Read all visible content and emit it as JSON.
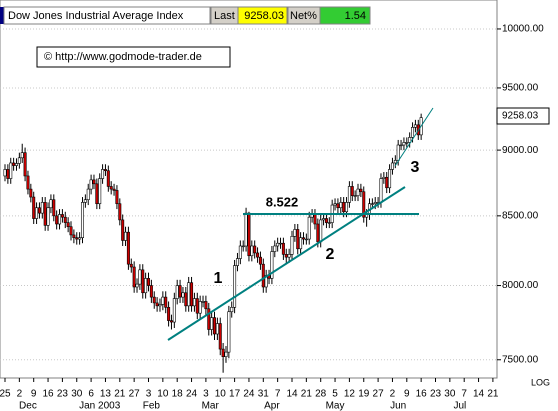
{
  "chart_data": {
    "type": "candlestick",
    "title": "Dow Jones Industrial Average Index",
    "last_label": "Last",
    "last": 9258.03,
    "net_label": "Net%",
    "net": 1.54,
    "source": "© http://www.godmode-trader.de",
    "annotations": [
      "8.522",
      "1",
      "2",
      "3"
    ],
    "log_label": "LOG",
    "log_scale": true,
    "grid": true,
    "up_color": "#ffffff",
    "down_color": "#cc0000",
    "trend_color": "#008080",
    "ylim": [
      7382,
      10255
    ],
    "yticks": [
      {
        "value": 7500,
        "label": "7500.00"
      },
      {
        "value": 8000,
        "label": "8000.00"
      },
      {
        "value": 8500,
        "label": "8500.00"
      },
      {
        "value": 9000,
        "label": "9000.00"
      },
      {
        "value": 9500,
        "label": "9500.00"
      },
      {
        "value": 10000,
        "label": "10000.00"
      }
    ],
    "date_labels": [
      "25",
      "2",
      "9",
      "16",
      "23",
      "30",
      "6",
      "13",
      "21",
      "27",
      "3",
      "10",
      "18",
      "24",
      "3",
      "10",
      "17",
      "24",
      "31",
      "7",
      "14",
      "21",
      "28",
      "5",
      "12",
      "19",
      "27",
      "2",
      "9",
      "16",
      "23",
      "30",
      "7",
      "14",
      "21"
    ],
    "month_labels": [
      "Dec",
      "Jan 2003",
      "Feb",
      "Mar",
      "Apr",
      "May",
      "Jun",
      "Jul"
    ],
    "candles": [
      [
        8800,
        8890,
        8760,
        8850
      ],
      [
        8850,
        8890,
        8740,
        8780
      ],
      [
        8780,
        8940,
        8740,
        8900
      ],
      [
        8900,
        8940,
        8840,
        8880
      ],
      [
        8880,
        8936,
        8840,
        8896
      ],
      [
        8896,
        8980,
        8856,
        8940
      ],
      [
        8940,
        9050,
        8900,
        8980
      ],
      [
        8980,
        9020,
        8760,
        8800
      ],
      [
        8800,
        8840,
        8660,
        8700
      ],
      [
        8700,
        8740,
        8600,
        8640
      ],
      [
        8640,
        8680,
        8440,
        8480
      ],
      [
        8480,
        8600,
        8440,
        8560
      ],
      [
        8560,
        8600,
        8480,
        8520
      ],
      [
        8520,
        8640,
        8480,
        8600
      ],
      [
        8600,
        8640,
        8390,
        8430
      ],
      [
        8430,
        8600,
        8390,
        8560
      ],
      [
        8560,
        8660,
        8520,
        8620
      ],
      [
        8620,
        8660,
        8460,
        8500
      ],
      [
        8500,
        8540,
        8400,
        8440
      ],
      [
        8440,
        8550,
        8400,
        8510
      ],
      [
        8510,
        8550,
        8450,
        8490
      ],
      [
        8490,
        8530,
        8410,
        8450
      ],
      [
        8450,
        8490,
        8380,
        8420
      ],
      [
        8420,
        8460,
        8320,
        8360
      ],
      [
        8360,
        8400,
        8300,
        8340
      ],
      [
        8340,
        8380,
        8290,
        8330
      ],
      [
        8330,
        8380,
        8290,
        8340
      ],
      [
        8340,
        8640,
        8300,
        8600
      ],
      [
        8600,
        8660,
        8560,
        8620
      ],
      [
        8620,
        8740,
        8580,
        8700
      ],
      [
        8700,
        8810,
        8660,
        8770
      ],
      [
        8770,
        8810,
        8700,
        8740
      ],
      [
        8740,
        8780,
        8550,
        8590
      ],
      [
        8590,
        8820,
        8550,
        8780
      ],
      [
        8780,
        8890,
        8740,
        8850
      ],
      [
        8850,
        8890,
        8800,
        8840
      ],
      [
        8840,
        8880,
        8680,
        8720
      ],
      [
        8720,
        8760,
        8660,
        8700
      ],
      [
        8700,
        8740,
        8650,
        8690
      ],
      [
        8690,
        8730,
        8550,
        8590
      ],
      [
        8590,
        8630,
        8430,
        8470
      ],
      [
        8470,
        8510,
        8280,
        8320
      ],
      [
        8320,
        8420,
        8280,
        8380
      ],
      [
        8380,
        8420,
        8110,
        8150
      ],
      [
        8150,
        8190,
        8090,
        8130
      ],
      [
        8130,
        8170,
        7950,
        7990
      ],
      [
        7990,
        8050,
        7950,
        8010
      ],
      [
        8010,
        8150,
        7970,
        8110
      ],
      [
        8110,
        8150,
        7910,
        7950
      ],
      [
        7950,
        8090,
        7910,
        8050
      ],
      [
        8050,
        8090,
        7960,
        8000
      ],
      [
        8000,
        8040,
        7880,
        7920
      ],
      [
        7920,
        7960,
        7840,
        7880
      ],
      [
        7880,
        7920,
        7820,
        7860
      ],
      [
        7860,
        7910,
        7820,
        7870
      ],
      [
        7870,
        7960,
        7830,
        7920
      ],
      [
        7920,
        7960,
        7810,
        7850
      ],
      [
        7850,
        7890,
        7720,
        7760
      ],
      [
        7760,
        7800,
        7700,
        7750
      ],
      [
        7750,
        7950,
        7710,
        7910
      ],
      [
        7910,
        8040,
        7870,
        8000
      ],
      [
        8000,
        8040,
        7880,
        7920
      ],
      [
        7920,
        7990,
        7880,
        7950
      ],
      [
        7950,
        7990,
        7820,
        7860
      ],
      [
        7860,
        8060,
        7820,
        8020
      ],
      [
        8020,
        8060,
        7820,
        7860
      ],
      [
        7860,
        7950,
        7820,
        7910
      ],
      [
        7910,
        7950,
        7770,
        7810
      ],
      [
        7810,
        7930,
        7770,
        7890
      ],
      [
        7890,
        7930,
        7850,
        7890
      ],
      [
        7890,
        7930,
        7800,
        7840
      ],
      [
        7840,
        7880,
        7660,
        7700
      ],
      [
        7700,
        7820,
        7660,
        7780
      ],
      [
        7780,
        7820,
        7630,
        7670
      ],
      [
        7670,
        7780,
        7630,
        7740
      ],
      [
        7740,
        7780,
        7530,
        7570
      ],
      [
        7570,
        7610,
        7416,
        7520
      ],
      [
        7520,
        7590,
        7480,
        7550
      ],
      [
        7550,
        7860,
        7510,
        7820
      ],
      [
        7820,
        7890,
        7780,
        7850
      ],
      [
        7850,
        8180,
        7810,
        8140
      ],
      [
        8140,
        8230,
        8100,
        8190
      ],
      [
        8190,
        8320,
        8150,
        8280
      ],
      [
        8280,
        8320,
        8240,
        8280
      ],
      [
        8280,
        8560,
        8240,
        8520
      ],
      [
        8520,
        8530,
        8170,
        8210
      ],
      [
        8210,
        8320,
        8170,
        8280
      ],
      [
        8280,
        8320,
        8190,
        8230
      ],
      [
        8230,
        8270,
        8160,
        8200
      ],
      [
        8200,
        8240,
        8110,
        8150
      ],
      [
        8150,
        8190,
        7950,
        7990
      ],
      [
        7990,
        8110,
        7950,
        8070
      ],
      [
        8070,
        8110,
        8010,
        8050
      ],
      [
        8050,
        8280,
        8010,
        8240
      ],
      [
        8240,
        8320,
        8200,
        8280
      ],
      [
        8280,
        8340,
        8240,
        8300
      ],
      [
        8300,
        8340,
        8260,
        8300
      ],
      [
        8300,
        8340,
        8180,
        8220
      ],
      [
        8220,
        8260,
        8160,
        8200
      ],
      [
        8200,
        8260,
        8160,
        8220
      ],
      [
        8220,
        8390,
        8180,
        8350
      ],
      [
        8350,
        8440,
        8310,
        8400
      ],
      [
        8400,
        8440,
        8220,
        8260
      ],
      [
        8260,
        8380,
        8220,
        8340
      ],
      [
        8340,
        8380,
        8290,
        8330
      ],
      [
        8330,
        8370,
        8290,
        8330
      ],
      [
        8330,
        8530,
        8290,
        8490
      ],
      [
        8490,
        8550,
        8450,
        8510
      ],
      [
        8510,
        8550,
        8400,
        8440
      ],
      [
        8440,
        8480,
        8270,
        8310
      ],
      [
        8310,
        8510,
        8270,
        8470
      ],
      [
        8470,
        8520,
        8430,
        8480
      ],
      [
        8480,
        8520,
        8410,
        8450
      ],
      [
        8450,
        8490,
        8410,
        8450
      ],
      [
        8450,
        8620,
        8410,
        8580
      ],
      [
        8580,
        8630,
        8540,
        8590
      ],
      [
        8590,
        8630,
        8520,
        8560
      ],
      [
        8560,
        8640,
        8520,
        8600
      ],
      [
        8600,
        8640,
        8490,
        8530
      ],
      [
        8530,
        8640,
        8490,
        8600
      ],
      [
        8600,
        8760,
        8560,
        8720
      ],
      [
        8720,
        8760,
        8610,
        8650
      ],
      [
        8650,
        8690,
        8610,
        8650
      ],
      [
        8650,
        8740,
        8610,
        8700
      ],
      [
        8700,
        8740,
        8640,
        8680
      ],
      [
        8680,
        8720,
        8450,
        8490
      ],
      [
        8490,
        8550,
        8420,
        8510
      ],
      [
        8510,
        8630,
        8470,
        8590
      ],
      [
        8590,
        8630,
        8550,
        8590
      ],
      [
        8590,
        8640,
        8550,
        8600
      ],
      [
        8600,
        8640,
        8560,
        8600
      ],
      [
        8600,
        8820,
        8560,
        8780
      ],
      [
        8780,
        8830,
        8740,
        8790
      ],
      [
        8790,
        8830,
        8670,
        8710
      ],
      [
        8710,
        8890,
        8670,
        8850
      ],
      [
        8850,
        8940,
        8810,
        8900
      ],
      [
        8900,
        8960,
        8860,
        8920
      ],
      [
        8920,
        9080,
        8880,
        9040
      ],
      [
        9040,
        9080,
        9000,
        9040
      ],
      [
        9040,
        9100,
        9000,
        9060
      ],
      [
        9060,
        9100,
        9020,
        9060
      ],
      [
        9060,
        9140,
        9020,
        9100
      ],
      [
        9100,
        9220,
        9060,
        9180
      ],
      [
        9180,
        9240,
        9140,
        9200
      ],
      [
        9200,
        9240,
        9080,
        9120
      ],
      [
        9120,
        9290,
        9080,
        9258.03
      ]
    ]
  }
}
